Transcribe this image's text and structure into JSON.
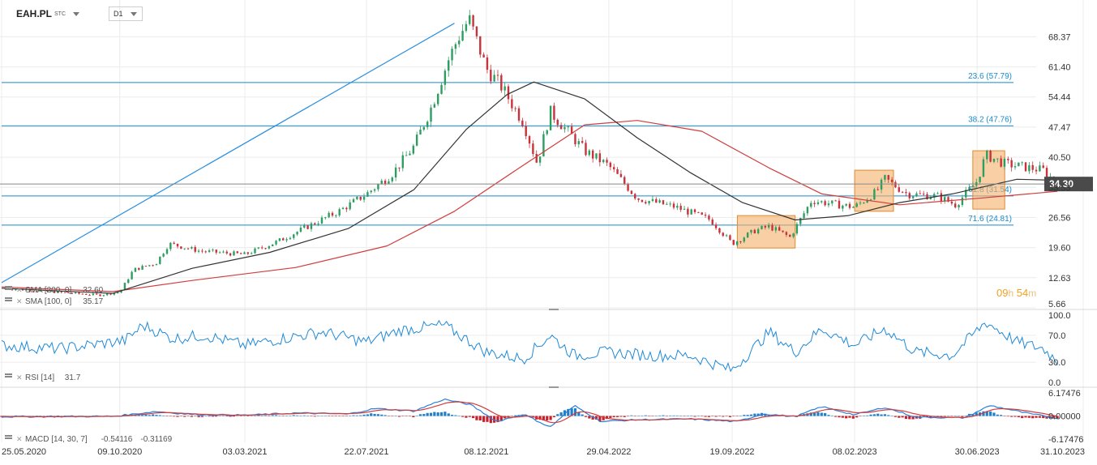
{
  "header": {
    "symbol": "EAH.PL",
    "symbol_suffix": "STC",
    "timeframe": "D1"
  },
  "countdown": {
    "hours": "09",
    "hours_unit": "h",
    "minutes": "54",
    "minutes_unit": "m"
  },
  "colors": {
    "up": "#2e9d60",
    "down": "#c8323a",
    "fib": "#1a8bc8",
    "trend": "#2a8fe0",
    "sma100": "#333333",
    "sma200": "#d23c3c",
    "rsi": "#1f8ad8",
    "macd": "#2a7fd8",
    "signal": "#d23c3c",
    "box_fill": "#f5b06a",
    "box_stroke": "#e08a30",
    "price_tag": "#4a4a4a"
  },
  "chart_data": [
    {
      "type": "candlestick",
      "panel": "price",
      "x_tick_labels": [
        "25.05.2020",
        "09.10.2020",
        "03.03.2021",
        "22.07.2021",
        "08.12.2021",
        "29.04.2022",
        "19.09.2022",
        "08.02.2023",
        "30.06.2023",
        "31.10.2023"
      ],
      "y_tick_labels": [
        "68.37",
        "61.40",
        "54.44",
        "47.47",
        "40.50",
        "33.53",
        "26.56",
        "19.60",
        "12.63",
        "5.66"
      ],
      "ylim": [
        5.66,
        73.5
      ],
      "last_price": "34.30",
      "indicators": [
        {
          "name": "SMA [200, 0]",
          "value": "32.60"
        },
        {
          "name": "SMA [100, 0]",
          "value": "35.17"
        }
      ],
      "fibonacci": [
        {
          "label": "23.6 (57.79)",
          "value": 57.79
        },
        {
          "label": "38.2 (47.76)",
          "value": 47.76
        },
        {
          "label": "61.8 (31.54)",
          "value": 31.54
        },
        {
          "label": "71.6 (24.81)",
          "value": 24.81
        }
      ],
      "trend_line": {
        "from": [
          "2020-05-25",
          11.5
        ],
        "to": [
          "2021-11-01",
          71.5
        ]
      },
      "price_path": [
        [
          "2020-05-25",
          10.2
        ],
        [
          "2020-09-15",
          8.6
        ],
        [
          "2020-10-09",
          9.3
        ],
        [
          "2020-10-25",
          14.5
        ],
        [
          "2020-11-20",
          16.0
        ],
        [
          "2020-12-05",
          20.5
        ],
        [
          "2021-01-10",
          18.8
        ],
        [
          "2021-03-03",
          18.0
        ],
        [
          "2021-04-10",
          21.0
        ],
        [
          "2021-05-15",
          24.5
        ],
        [
          "2021-06-20",
          28.0
        ],
        [
          "2021-07-22",
          32.0
        ],
        [
          "2021-08-20",
          36.5
        ],
        [
          "2021-09-15",
          43.0
        ],
        [
          "2021-10-05",
          52.0
        ],
        [
          "2021-10-25",
          63.0
        ],
        [
          "2021-11-05",
          68.0
        ],
        [
          "2021-11-18",
          72.5
        ],
        [
          "2021-12-08",
          61.0
        ],
        [
          "2021-12-25",
          57.0
        ],
        [
          "2022-01-20",
          48.5
        ],
        [
          "2022-02-05",
          39.0
        ],
        [
          "2022-02-20",
          51.0
        ],
        [
          "2022-03-10",
          47.0
        ],
        [
          "2022-04-01",
          42.0
        ],
        [
          "2022-04-29",
          38.5
        ],
        [
          "2022-06-01",
          31.0
        ],
        [
          "2022-07-15",
          29.0
        ],
        [
          "2022-08-25",
          26.0
        ],
        [
          "2022-09-19",
          20.5
        ],
        [
          "2022-10-15",
          23.5
        ],
        [
          "2022-11-01",
          24.5
        ],
        [
          "2022-11-25",
          22.0
        ],
        [
          "2022-12-20",
          30.5
        ],
        [
          "2023-01-20",
          29.5
        ],
        [
          "2023-02-08",
          29.0
        ],
        [
          "2023-03-05",
          32.5
        ],
        [
          "2023-03-15",
          35.5
        ],
        [
          "2023-04-10",
          32.0
        ],
        [
          "2023-05-15",
          31.5
        ],
        [
          "2023-06-05",
          29.5
        ],
        [
          "2023-06-30",
          35.0
        ],
        [
          "2023-07-10",
          41.0
        ],
        [
          "2023-08-01",
          39.0
        ],
        [
          "2023-09-15",
          37.5
        ],
        [
          "2023-10-01",
          34.3
        ]
      ],
      "sma100_path": [
        [
          "2020-05-25",
          10.2
        ],
        [
          "2020-10-01",
          9.0
        ],
        [
          "2021-01-01",
          14.8
        ],
        [
          "2021-04-01",
          18.5
        ],
        [
          "2021-07-01",
          24.0
        ],
        [
          "2021-09-15",
          33.0
        ],
        [
          "2021-11-15",
          47.0
        ],
        [
          "2022-01-01",
          55.0
        ],
        [
          "2022-02-01",
          57.9
        ],
        [
          "2022-04-01",
          54.0
        ],
        [
          "2022-06-01",
          45.0
        ],
        [
          "2022-08-01",
          37.0
        ],
        [
          "2022-10-01",
          30.0
        ],
        [
          "2022-12-01",
          26.0
        ],
        [
          "2023-02-01",
          27.0
        ],
        [
          "2023-04-01",
          30.0
        ],
        [
          "2023-06-01",
          32.0
        ],
        [
          "2023-08-15",
          35.4
        ],
        [
          "2023-10-01",
          35.17
        ]
      ],
      "sma200_path": [
        [
          "2020-05-25",
          10.5
        ],
        [
          "2020-10-01",
          9.4
        ],
        [
          "2021-01-01",
          12.0
        ],
        [
          "2021-05-01",
          15.0
        ],
        [
          "2021-08-15",
          20.0
        ],
        [
          "2021-11-01",
          28.0
        ],
        [
          "2022-01-15",
          38.0
        ],
        [
          "2022-04-01",
          48.0
        ],
        [
          "2022-06-01",
          49.0
        ],
        [
          "2022-08-15",
          46.5
        ],
        [
          "2022-11-01",
          38.0
        ],
        [
          "2023-01-01",
          32.0
        ],
        [
          "2023-04-01",
          29.5
        ],
        [
          "2023-07-01",
          31.0
        ],
        [
          "2023-10-01",
          32.6
        ]
      ],
      "highlight_boxes": [
        {
          "from": "2022-09-25",
          "to": "2022-12-01",
          "low": 19.5,
          "high": 27.0
        },
        {
          "from": "2023-02-08",
          "to": "2023-03-25",
          "low": 28.0,
          "high": 37.5
        },
        {
          "from": "2023-06-25",
          "to": "2023-08-01",
          "low": 28.5,
          "high": 42.0
        }
      ]
    },
    {
      "type": "line",
      "panel": "rsi",
      "indicator": "RSI [14]",
      "value_label": "31.7",
      "y_tick_labels": [
        "100.0",
        "70.0",
        "30.0",
        "0.0"
      ],
      "ylim": [
        0,
        100
      ],
      "path": [
        [
          "2020-05-25",
          55
        ],
        [
          "2020-08-01",
          50
        ],
        [
          "2020-10-15",
          62
        ],
        [
          "2020-11-05",
          85
        ],
        [
          "2020-12-10",
          65
        ],
        [
          "2021-01-15",
          70
        ],
        [
          "2021-03-03",
          55
        ],
        [
          "2021-04-15",
          65
        ],
        [
          "2021-06-01",
          75
        ],
        [
          "2021-07-22",
          60
        ],
        [
          "2021-09-01",
          78
        ],
        [
          "2021-10-20",
          85
        ],
        [
          "2021-12-08",
          45
        ],
        [
          "2022-01-20",
          35
        ],
        [
          "2022-02-20",
          70
        ],
        [
          "2022-03-20",
          40
        ],
        [
          "2022-04-29",
          45
        ],
        [
          "2022-06-15",
          40
        ],
        [
          "2022-08-01",
          40
        ],
        [
          "2022-09-19",
          18
        ],
        [
          "2022-11-01",
          75
        ],
        [
          "2022-12-01",
          45
        ],
        [
          "2023-01-01",
          80
        ],
        [
          "2023-02-08",
          55
        ],
        [
          "2023-03-15",
          80
        ],
        [
          "2023-04-20",
          45
        ],
        [
          "2023-06-01",
          40
        ],
        [
          "2023-07-10",
          90
        ],
        [
          "2023-08-15",
          60
        ],
        [
          "2023-09-15",
          50
        ],
        [
          "2023-10-01",
          31.7
        ]
      ]
    },
    {
      "type": "bar+line",
      "panel": "macd",
      "indicator": "MACD [14, 30, 7]",
      "macd_value": "-0.54116",
      "signal_value": "-0.31169",
      "y_tick_labels": [
        "6.17476",
        "0.00000",
        "-6.17476"
      ],
      "ylim": [
        -6.17476,
        6.17476
      ],
      "macd_path": [
        [
          "2020-05-25",
          -0.2
        ],
        [
          "2020-10-01",
          -0.1
        ],
        [
          "2020-11-20",
          1.2
        ],
        [
          "2021-01-01",
          0.4
        ],
        [
          "2021-03-03",
          0.2
        ],
        [
          "2021-05-01",
          0.8
        ],
        [
          "2021-07-01",
          0.5
        ],
        [
          "2021-08-01",
          2.0
        ],
        [
          "2021-09-15",
          1.3
        ],
        [
          "2021-10-20",
          4.5
        ],
        [
          "2021-11-20",
          3.0
        ],
        [
          "2021-12-20",
          -1.5
        ],
        [
          "2022-01-20",
          0.5
        ],
        [
          "2022-02-20",
          -3.0
        ],
        [
          "2022-03-20",
          2.8
        ],
        [
          "2022-04-20",
          -1.5
        ],
        [
          "2022-06-01",
          -1.0
        ],
        [
          "2022-08-01",
          -0.8
        ],
        [
          "2022-09-25",
          -1.5
        ],
        [
          "2022-10-25",
          0.6
        ],
        [
          "2022-12-01",
          -0.2
        ],
        [
          "2023-01-01",
          2.5
        ],
        [
          "2023-02-08",
          0.3
        ],
        [
          "2023-03-15",
          2.3
        ],
        [
          "2023-04-20",
          -0.3
        ],
        [
          "2023-06-15",
          -0.5
        ],
        [
          "2023-07-15",
          2.8
        ],
        [
          "2023-09-01",
          0.5
        ],
        [
          "2023-10-01",
          -0.54
        ]
      ]
    }
  ]
}
